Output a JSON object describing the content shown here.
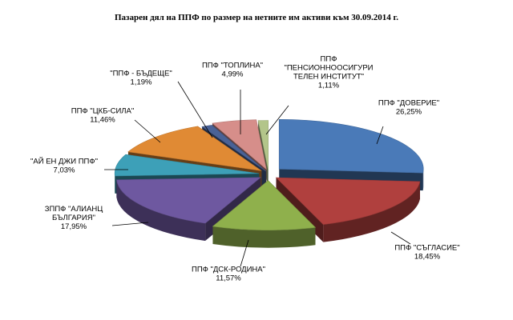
{
  "chart_data": {
    "type": "pie",
    "title": "Пазарен дял на ППФ по размер на нетните им активи към 30.09.2014 г.",
    "slices": [
      {
        "name": [
          "ППФ \"ДОВЕРИЕ\""
        ],
        "value": 26.25,
        "value_label": "26,25%",
        "color": "#4a7ab8"
      },
      {
        "name": [
          "ППФ \"СЪГЛАСИЕ\""
        ],
        "value": 18.45,
        "value_label": "18,45%",
        "color": "#b0403e"
      },
      {
        "name": [
          "ППФ \"ДСК-РОДИНА\""
        ],
        "value": 11.57,
        "value_label": "11,57%",
        "color": "#8fb04c"
      },
      {
        "name": [
          "ЗППФ \"АЛИАНЦ",
          "БЪЛГАРИЯ\""
        ],
        "value": 17.95,
        "value_label": "17,95%",
        "color": "#6e58a0"
      },
      {
        "name": [
          "\"АЙ ЕН ДЖИ ППФ\""
        ],
        "value": 7.03,
        "value_label": "7,03%",
        "color": "#3da0b8"
      },
      {
        "name": [
          "ППФ \"ЦКБ-СИЛА\""
        ],
        "value": 11.46,
        "value_label": "11,46%",
        "color": "#e08a34"
      },
      {
        "name": [
          "\"ППФ - БЪДЕЩЕ\""
        ],
        "value": 1.19,
        "value_label": "1,19%",
        "color": "#4a6296"
      },
      {
        "name": [
          "ППФ \"ТОПЛИНА\""
        ],
        "value": 4.99,
        "value_label": "4,99%",
        "color": "#d68e8a"
      },
      {
        "name": [
          "ППФ",
          "\"ПЕНСИОННООСИГУРИ",
          "ТЕЛЕН ИНСТИТУТ\""
        ],
        "value": 1.11,
        "value_label": "1,11%",
        "color": "#b3c58a"
      }
    ]
  }
}
